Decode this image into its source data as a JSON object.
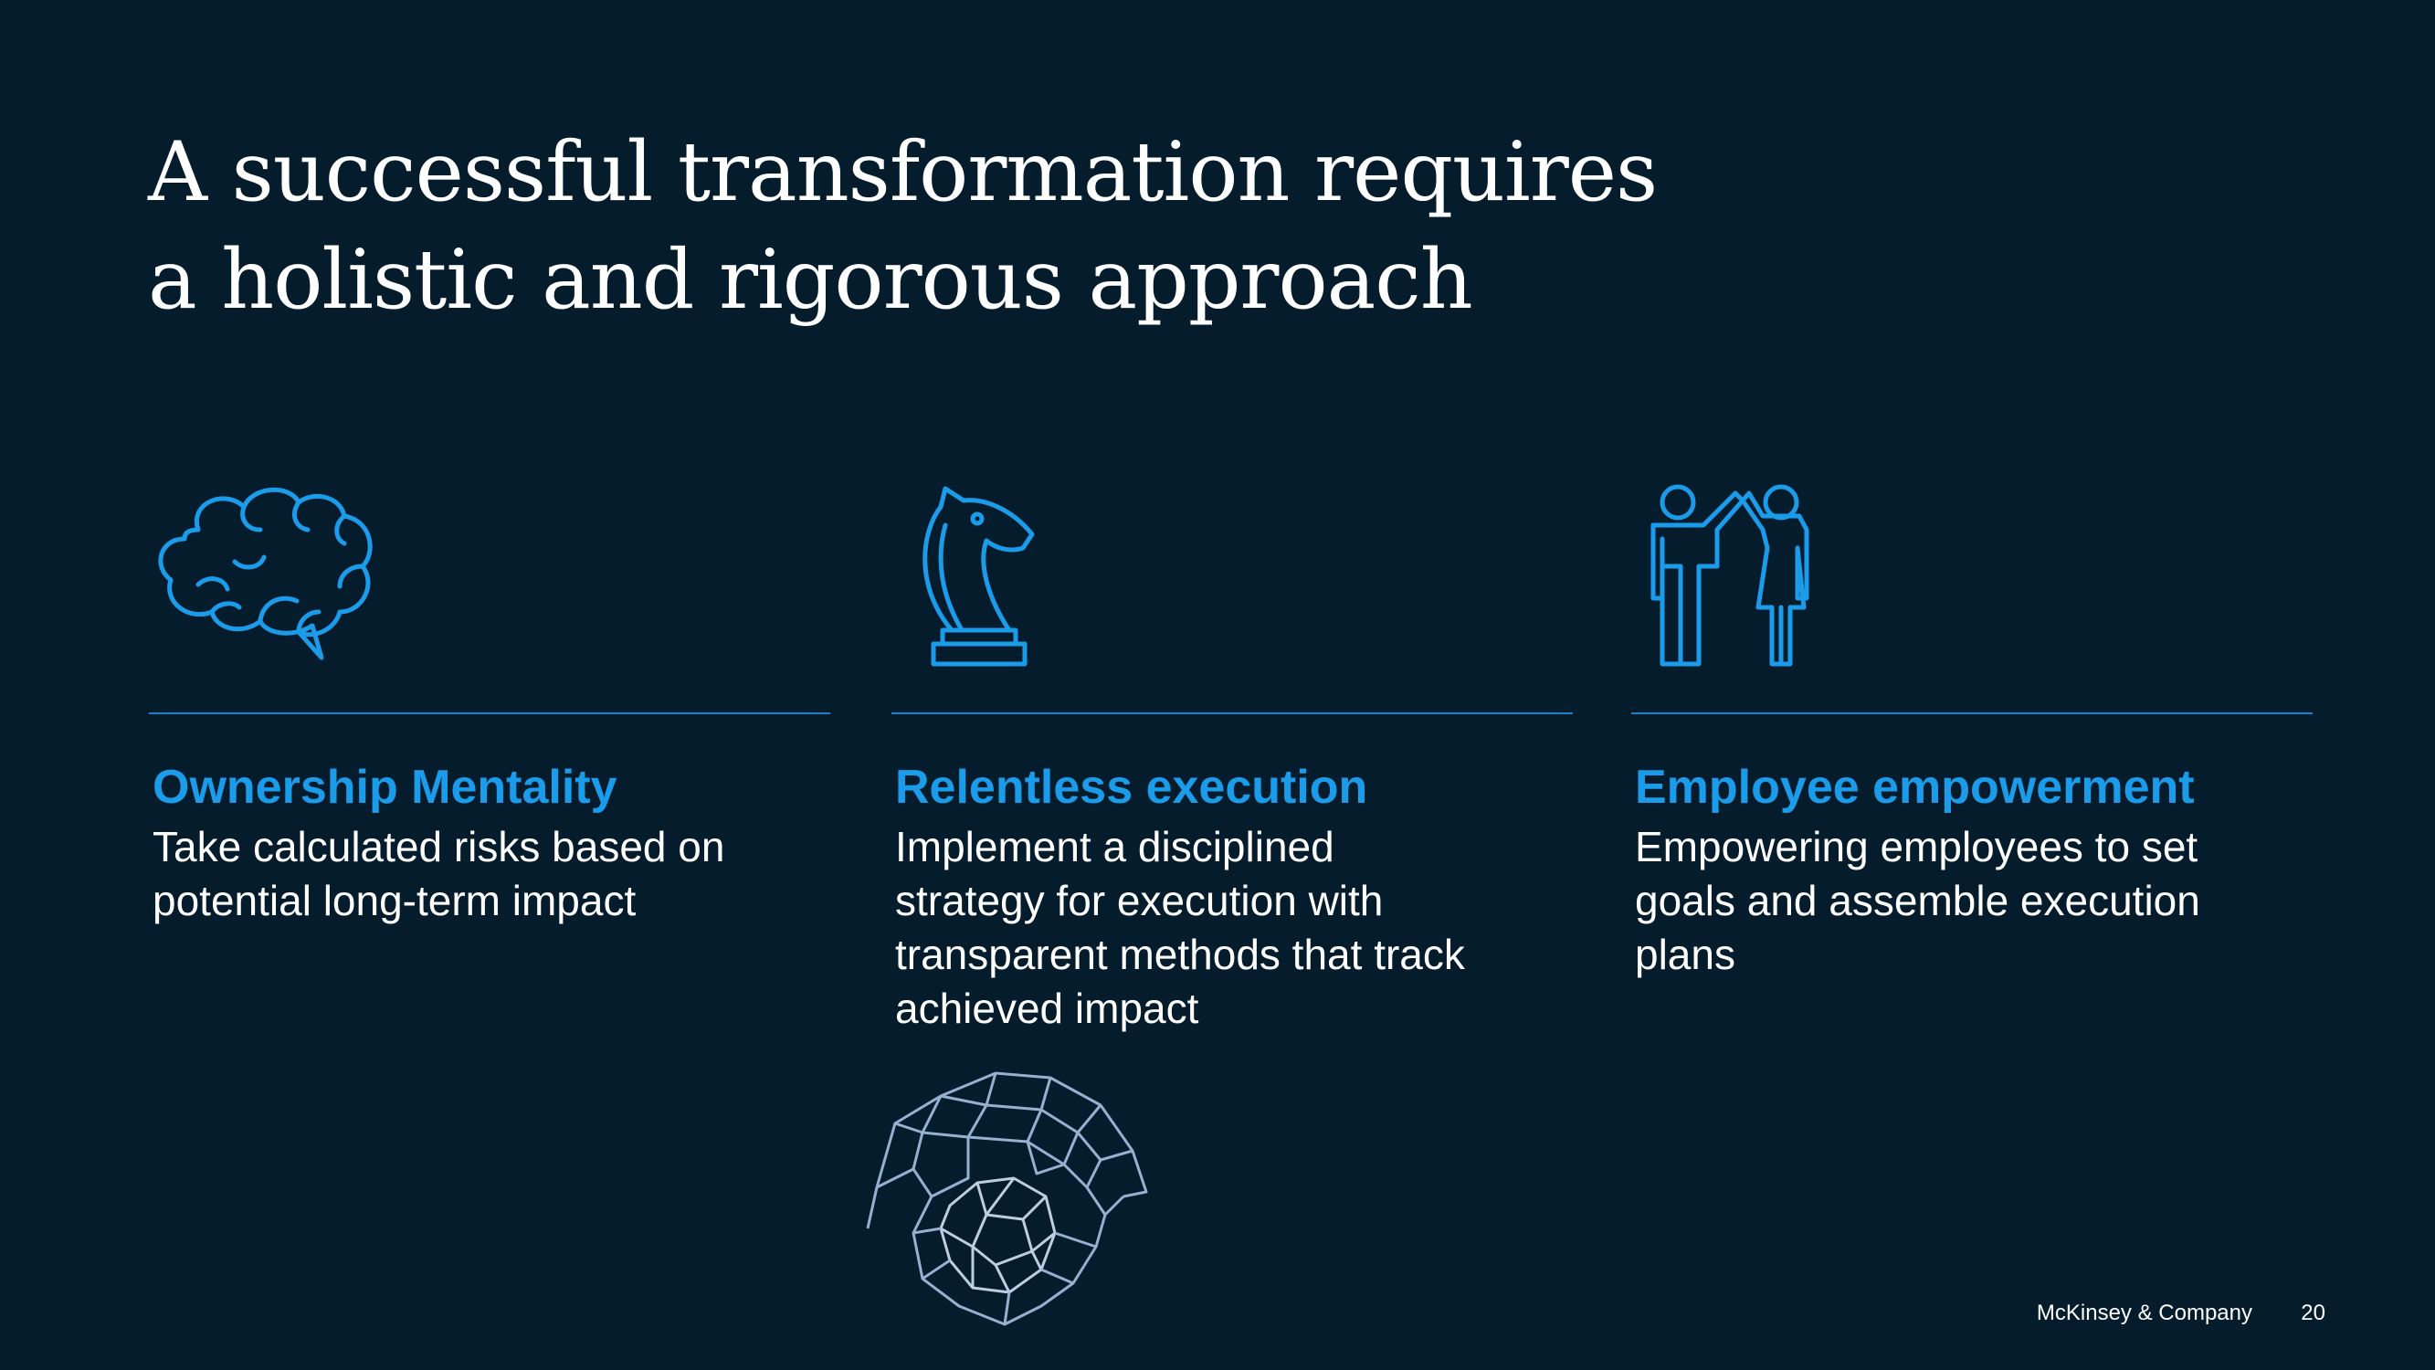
{
  "slide": {
    "title_lines": [
      "A successful transformation requires",
      "a holistic and rigorous approach"
    ]
  },
  "columns": [
    {
      "icon": "brain-icon",
      "heading": "Ownership Mentality",
      "body_lines": [
        "Take calculated risks based on",
        "potential long-term impact"
      ]
    },
    {
      "icon": "chess-knight-icon",
      "heading": "Relentless execution",
      "body_lines": [
        "Implement a disciplined",
        "strategy for execution with",
        "transparent methods that track",
        "achieved impact"
      ]
    },
    {
      "icon": "people-high-five-icon",
      "heading": "Employee empowerment",
      "body_lines": [
        "Empowering employees to set",
        "goals and assemble execution",
        "plans"
      ]
    }
  ],
  "decoration": {
    "icon": "molecular-structure-icon"
  },
  "footer": {
    "brand": "McKinsey & Company",
    "page_number": "20"
  },
  "colors": {
    "background": "#051C2C",
    "accent": "#1B9CEB",
    "rule": "#1F7FC6",
    "text": "#FFFFFF"
  }
}
